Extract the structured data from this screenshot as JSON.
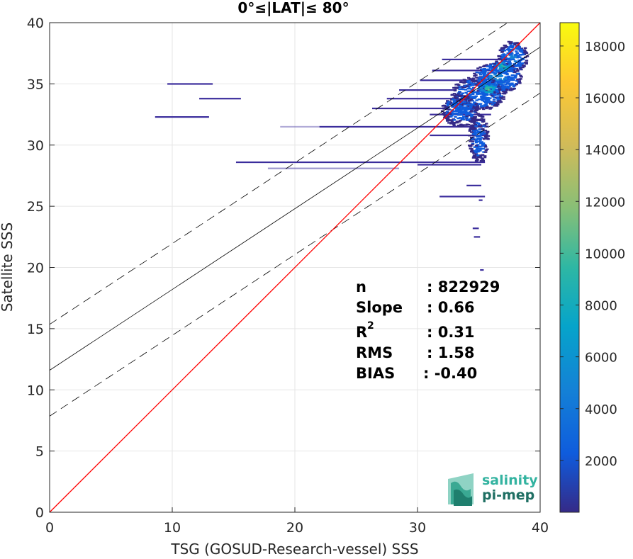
{
  "chart_data": {
    "type": "heatmap",
    "title": "0°≤|LAT|≤ 80°",
    "xlabel": "TSG (GOSUD-Research-vessel) SSS",
    "ylabel": "Satellite SSS",
    "xlim": [
      0,
      40
    ],
    "ylim": [
      0,
      40
    ],
    "x_ticks": [
      "0",
      "10",
      "20",
      "30",
      "40"
    ],
    "y_ticks": [
      "0",
      "5",
      "10",
      "15",
      "20",
      "25",
      "30",
      "35",
      "40"
    ],
    "grid": true,
    "identity_line": {
      "color": "#ff0000",
      "from": [
        0,
        0
      ],
      "to": [
        40,
        40
      ]
    },
    "fit_line": {
      "slope": 0.66,
      "intercept": 11.6,
      "color": "#000000"
    },
    "fit_band_offset": 3.75,
    "colorbar": {
      "min": 0,
      "max": 18900,
      "ticks": [
        "2000",
        "4000",
        "6000",
        "8000",
        "10000",
        "12000",
        "14000",
        "16000",
        "18000"
      ],
      "tick_values": [
        2000,
        4000,
        6000,
        8000,
        10000,
        12000,
        14000,
        16000,
        18000
      ],
      "colormap": "parula"
    },
    "density_segments": [
      {
        "x1": 9.6,
        "x2": 13.3,
        "y": 35.0,
        "w": 1
      },
      {
        "x1": 12.2,
        "x2": 15.6,
        "y": 33.8,
        "w": 1
      },
      {
        "x1": 8.6,
        "x2": 13.0,
        "y": 32.3,
        "w": 1
      },
      {
        "x1": 18.8,
        "x2": 22.0,
        "y": 31.5,
        "w": 0.4
      },
      {
        "x1": 22.0,
        "x2": 35.0,
        "y": 31.5,
        "w": 1
      },
      {
        "x1": 15.2,
        "x2": 35.5,
        "y": 28.6,
        "w": 1
      },
      {
        "x1": 17.8,
        "x2": 28.5,
        "y": 28.1,
        "w": 0.5
      },
      {
        "x1": 30.0,
        "x2": 35.2,
        "y": 28.4,
        "w": 1
      },
      {
        "x1": 27.5,
        "x2": 33.0,
        "y": 33.8,
        "w": 1
      },
      {
        "x1": 26.3,
        "x2": 32.5,
        "y": 33.0,
        "w": 1
      },
      {
        "x1": 28.5,
        "x2": 33.2,
        "y": 34.5,
        "w": 1
      },
      {
        "x1": 30.2,
        "x2": 35.0,
        "y": 35.3,
        "w": 1
      },
      {
        "x1": 31.2,
        "x2": 36.5,
        "y": 36.1,
        "w": 1
      },
      {
        "x1": 32.0,
        "x2": 37.5,
        "y": 37.0,
        "w": 1
      },
      {
        "x1": 31.0,
        "x2": 36.0,
        "y": 32.5,
        "w": 1
      },
      {
        "x1": 31.0,
        "x2": 35.5,
        "y": 30.8,
        "w": 1
      },
      {
        "x1": 31.8,
        "x2": 35.5,
        "y": 25.8,
        "w": 1
      },
      {
        "x1": 34.0,
        "x2": 35.2,
        "y": 26.7,
        "w": 1
      },
      {
        "x1": 35.0,
        "x2": 35.3,
        "y": 25.5,
        "w": 1
      },
      {
        "x1": 34.5,
        "x2": 35.0,
        "y": 23.2,
        "w": 1
      },
      {
        "x1": 34.6,
        "x2": 35.1,
        "y": 22.5,
        "w": 1
      },
      {
        "x1": 35.1,
        "x2": 35.4,
        "y": 19.8,
        "w": 1
      }
    ],
    "density_blobs": [
      {
        "x": 35.0,
        "y": 34.2,
        "rx": 2.2,
        "ry": 1.4,
        "level": 0.05
      },
      {
        "x": 36.5,
        "y": 35.5,
        "rx": 2.0,
        "ry": 1.3,
        "level": 0.08
      },
      {
        "x": 37.8,
        "y": 37.2,
        "rx": 1.2,
        "ry": 1.3,
        "level": 0.07
      },
      {
        "x": 33.5,
        "y": 32.8,
        "rx": 1.5,
        "ry": 1.3,
        "level": 0.04
      },
      {
        "x": 35.0,
        "y": 30.5,
        "rx": 0.8,
        "ry": 2.0,
        "level": 0.03
      },
      {
        "x": 35.8,
        "y": 34.6,
        "rx": 0.9,
        "ry": 0.6,
        "level": 0.2
      },
      {
        "x": 37.0,
        "y": 36.4,
        "rx": 0.8,
        "ry": 0.6,
        "level": 0.18
      }
    ],
    "stats": {
      "labels": [
        "n",
        "Slope",
        "R",
        "RMS",
        "BIAS"
      ],
      "r_superscript": "2",
      "values": [
        ": 822929",
        ": 0.66",
        ": 0.31",
        ": 1.58",
        ": -0.40"
      ]
    }
  },
  "logo": {
    "line1": "salinity",
    "line2": "pi-mep"
  }
}
